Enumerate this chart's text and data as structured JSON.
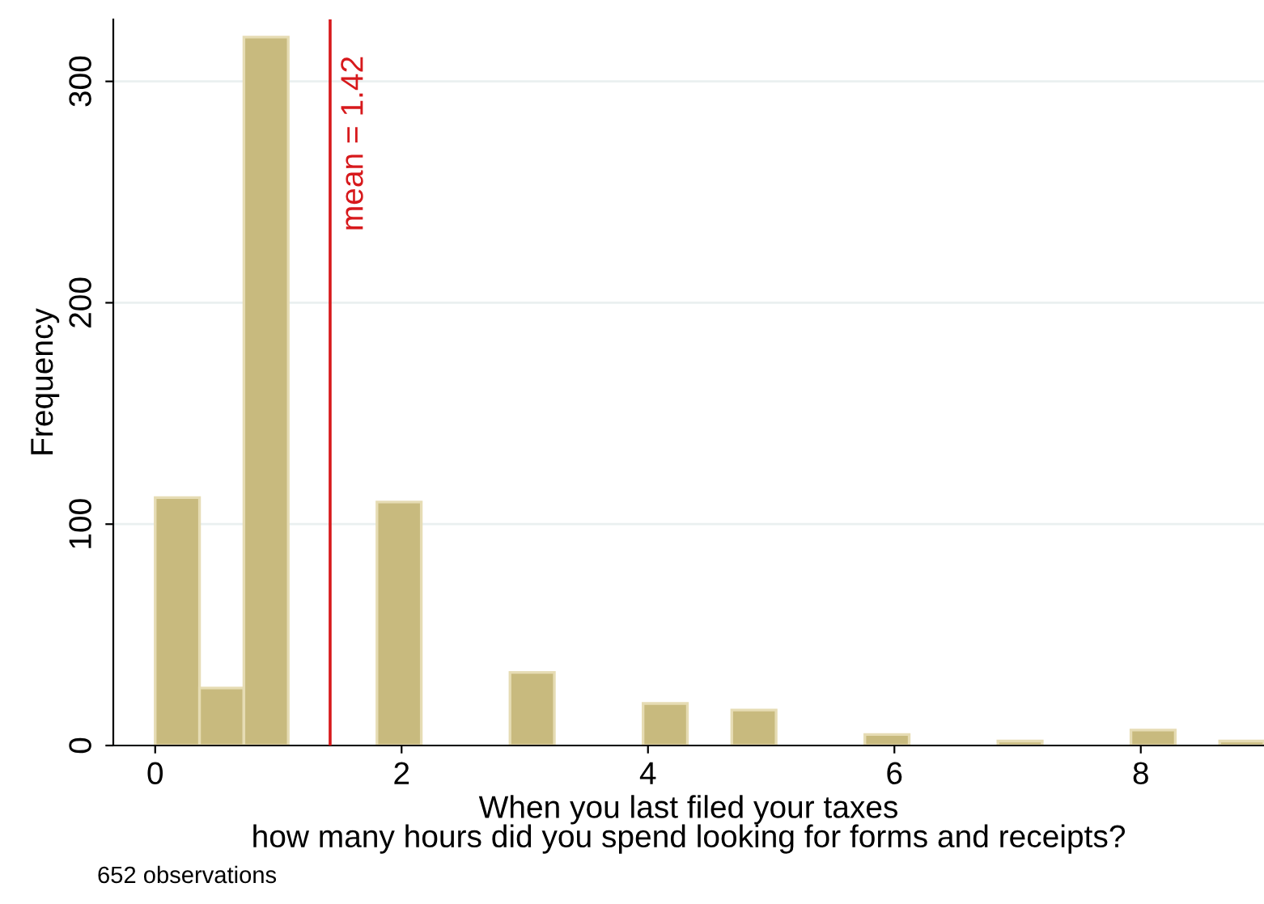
{
  "chart_data": {
    "type": "histogram",
    "xlabel": "When you last filed your taxes\nhow many hours did you spend looking for forms and receipts?",
    "ylabel": "Frequency",
    "bins": [
      0,
      0.36,
      0.72,
      1.08,
      1.44,
      1.8,
      2.16,
      2.52,
      2.88,
      3.24,
      3.6,
      3.96,
      4.32,
      4.68,
      5.04,
      5.4,
      5.76,
      6.12,
      6.48,
      6.84,
      7.2,
      7.56,
      7.92,
      8.28,
      8.64,
      9
    ],
    "values": [
      112,
      26,
      320,
      0,
      0,
      110,
      0,
      0,
      33,
      0,
      0,
      19,
      0,
      16,
      0,
      0,
      5,
      0,
      0,
      2,
      0,
      0,
      7,
      0,
      2
    ],
    "color": "#c8ba7e",
    "xlim": [
      -0.34,
      9
    ],
    "ylim": [
      0,
      328
    ],
    "xticks": [
      0,
      2,
      4,
      6,
      8
    ],
    "yticks": [
      0,
      100,
      200,
      300
    ],
    "grid": "y",
    "ref_lines": [
      {
        "axis": "x",
        "value": 1.42,
        "label": "mean = 1.42",
        "color": "#d7191c"
      }
    ],
    "annotations": [
      "652 observations"
    ]
  }
}
